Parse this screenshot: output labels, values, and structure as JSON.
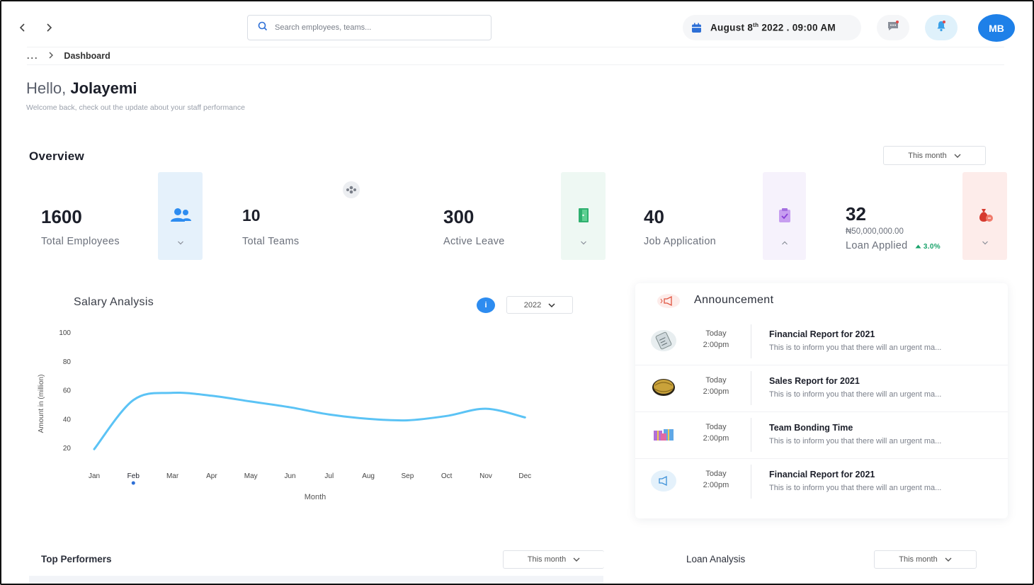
{
  "nav": {
    "back_icon": "chevron-left-icon",
    "forward_icon": "chevron-right-icon"
  },
  "search": {
    "placeholder": "Search employees, teams..."
  },
  "datetime": {
    "pre": "August 8",
    "sup": "th",
    "post": " 2022 . 09:00 AM"
  },
  "user": {
    "initials": "MB"
  },
  "breadcrumb": {
    "dots": "...",
    "current": "Dashboard"
  },
  "greeting": {
    "hello": "Hello,",
    "name": "Jolayemi",
    "subtitle": "Welcome back, check out the update about your staff performance"
  },
  "overview": {
    "title": "Overview",
    "period": "This month",
    "stats": [
      {
        "value": "1600",
        "label": "Total Employees"
      },
      {
        "value": "10",
        "label": "Total Teams"
      },
      {
        "value": "300",
        "label": "Active Leave"
      },
      {
        "value": "40",
        "label": "Job Application"
      },
      {
        "value": "32",
        "label": "Loan Applied",
        "amount": "₦50,000,000.00",
        "trend": "3.0%"
      }
    ]
  },
  "salary": {
    "title": "Salary Analysis",
    "info": "i",
    "year": "2022"
  },
  "chart_data": {
    "type": "line",
    "title": "Salary Analysis",
    "xlabel": "Month",
    "ylabel": "Amount in (million)",
    "categories": [
      "Jan",
      "Feb",
      "Mar",
      "Apr",
      "May",
      "Jun",
      "Jul",
      "Aug",
      "Sep",
      "Oct",
      "Nov",
      "Dec"
    ],
    "series": [
      {
        "name": "Salary",
        "values": [
          19,
          53,
          58,
          56,
          52,
          48,
          43,
          40,
          39,
          42,
          47,
          41
        ],
        "color": "#5bc3f5"
      }
    ],
    "yticks": [
      20,
      40,
      60,
      80,
      100
    ],
    "ylim": [
      10,
      100
    ],
    "highlight": "Feb"
  },
  "announcement": {
    "title": "Announcement",
    "items": [
      {
        "when": "Today",
        "time": "2:00pm",
        "title": "Financial Report for 2021",
        "desc": "This is to inform you that there will an urgent ma..."
      },
      {
        "when": "Today",
        "time": "2:00pm",
        "title": "Sales Report for 2021",
        "desc": "This is to inform you that there will an urgent ma..."
      },
      {
        "when": "Today",
        "time": "2:00pm",
        "title": "Team Bonding Time",
        "desc": "This is to inform you that there will an urgent ma..."
      },
      {
        "when": "Today",
        "time": "2:00pm",
        "title": "Financial Report for 2021",
        "desc": "This is to inform you that there will an urgent ma..."
      }
    ]
  },
  "bottom": {
    "top_performers": "Top Performers",
    "top_period": "This month",
    "loan_analysis": "Loan Analysis",
    "loan_period": "This month"
  }
}
